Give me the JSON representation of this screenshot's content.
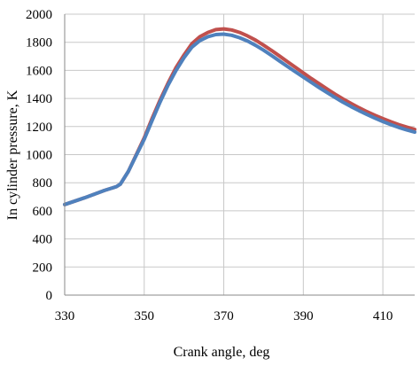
{
  "chart_data": {
    "type": "line",
    "title": "",
    "xlabel": "Crank angle, deg",
    "ylabel": "In cylinder pressure, K",
    "xlim": [
      330,
      418
    ],
    "ylim": [
      0,
      2000
    ],
    "x_ticks": [
      330,
      350,
      370,
      390,
      410
    ],
    "y_ticks": [
      0,
      200,
      400,
      600,
      800,
      1000,
      1200,
      1400,
      1600,
      1800,
      2000
    ],
    "grid": {
      "x": true,
      "y": true
    },
    "series": [
      {
        "color": "#c0504d",
        "x": [
          330,
          335,
          340,
          343,
          344,
          346,
          348,
          350,
          352,
          354,
          356,
          358,
          360,
          362,
          364,
          366,
          368,
          370,
          372,
          374,
          376,
          378,
          380,
          382,
          384,
          386,
          388,
          390,
          392,
          394,
          396,
          398,
          400,
          402,
          404,
          406,
          408,
          410,
          412,
          414,
          416,
          418
        ],
        "y": [
          645,
          693,
          745,
          772,
          790,
          880,
          1000,
          1120,
          1260,
          1390,
          1510,
          1620,
          1710,
          1790,
          1840,
          1870,
          1890,
          1895,
          1888,
          1870,
          1845,
          1815,
          1780,
          1742,
          1702,
          1662,
          1622,
          1582,
          1542,
          1504,
          1466,
          1430,
          1396,
          1364,
          1334,
          1306,
          1280,
          1256,
          1234,
          1214,
          1196,
          1180
        ]
      },
      {
        "color": "#4f81bd",
        "x": [
          330,
          335,
          340,
          343,
          344,
          346,
          348,
          350,
          352,
          354,
          356,
          358,
          360,
          362,
          364,
          366,
          368,
          370,
          372,
          374,
          376,
          378,
          380,
          382,
          384,
          386,
          388,
          390,
          392,
          394,
          396,
          398,
          400,
          402,
          404,
          406,
          408,
          410,
          412,
          414,
          416,
          418
        ],
        "y": [
          645,
          693,
          745,
          772,
          790,
          880,
          995,
          1110,
          1245,
          1375,
          1495,
          1600,
          1690,
          1765,
          1812,
          1840,
          1855,
          1858,
          1850,
          1832,
          1808,
          1778,
          1744,
          1706,
          1667,
          1628,
          1590,
          1552,
          1514,
          1477,
          1441,
          1406,
          1373,
          1342,
          1313,
          1286,
          1260,
          1236,
          1214,
          1194,
          1176,
          1160
        ]
      }
    ]
  }
}
